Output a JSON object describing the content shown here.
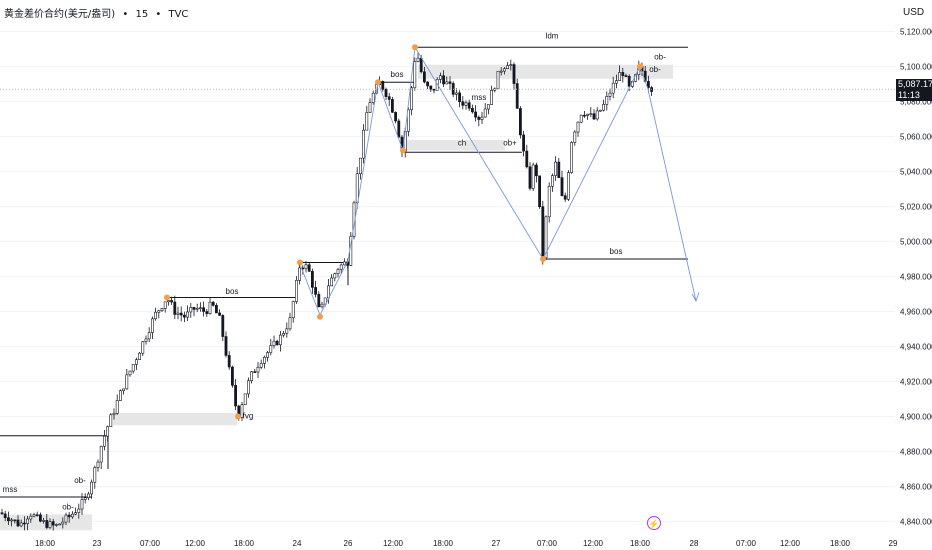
{
  "header": {
    "symbol": "黄金差价合约(美元/盎司)",
    "sep1": "•",
    "interval": "15",
    "sep2": "•",
    "source": "TVC"
  },
  "price_axis": {
    "currency": "USD"
  },
  "last_price": {
    "value": "5,087.171",
    "countdown": "11:13"
  },
  "alert_icon": "lightning-icon",
  "colors": {
    "candle": "#131722",
    "zone": "#e6e6e6",
    "pivot": "#f59c49",
    "projection": "#7b96d9",
    "price_tag_bg": "#131722",
    "alert": "#b03ad9"
  },
  "chart_data": {
    "type": "candlestick",
    "ylim": [
      4830,
      5130
    ],
    "y_ticks": [
      4840,
      4860,
      4880,
      4900,
      4920,
      4940,
      4960,
      4980,
      5000,
      5020,
      5040,
      5060,
      5080,
      5100,
      5120
    ],
    "y_tick_labels": [
      "4,840.000",
      "4,860.000",
      "4,880.000",
      "4,900.000",
      "4,920.000",
      "4,940.000",
      "4,960.000",
      "4,980.000",
      "5,000.000",
      "5,020.000",
      "5,040.000",
      "5,060.000",
      "5,080.000",
      "5,100.000",
      "5,120.000"
    ],
    "x_ticks": [
      "18:00",
      "23",
      "07:00",
      "12:00",
      "18:00",
      "24",
      "26",
      "12:00",
      "18:00",
      "27",
      "07:00",
      "12:00",
      "18:00",
      "28",
      "07:00",
      "12:00",
      "18:00",
      "29"
    ],
    "price_path": [
      [
        0,
        4845
      ],
      [
        10,
        4842
      ],
      [
        20,
        4838
      ],
      [
        30,
        4845
      ],
      [
        40,
        4840
      ],
      [
        55,
        4837
      ],
      [
        70,
        4843
      ],
      [
        85,
        4852
      ],
      [
        95,
        4870
      ],
      [
        102,
        4885
      ],
      [
        108,
        4895
      ],
      [
        115,
        4905
      ],
      [
        125,
        4920
      ],
      [
        135,
        4932
      ],
      [
        145,
        4945
      ],
      [
        155,
        4958
      ],
      [
        167,
        4968
      ],
      [
        175,
        4960
      ],
      [
        185,
        4957
      ],
      [
        195,
        4962
      ],
      [
        205,
        4960
      ],
      [
        212,
        4964
      ],
      [
        220,
        4955
      ],
      [
        228,
        4930
      ],
      [
        235,
        4908
      ],
      [
        238,
        4900
      ],
      [
        243,
        4910
      ],
      [
        250,
        4922
      ],
      [
        260,
        4932
      ],
      [
        270,
        4938
      ],
      [
        280,
        4945
      ],
      [
        290,
        4955
      ],
      [
        300,
        4987
      ],
      [
        308,
        4985
      ],
      [
        315,
        4970
      ],
      [
        320,
        4958
      ],
      [
        328,
        4975
      ],
      [
        338,
        4985
      ],
      [
        348,
        4989
      ],
      [
        355,
        5030
      ],
      [
        362,
        5055
      ],
      [
        368,
        5078
      ],
      [
        374,
        5085
      ],
      [
        380,
        5091
      ],
      [
        388,
        5083
      ],
      [
        396,
        5070
      ],
      [
        402,
        5052
      ],
      [
        410,
        5080
      ],
      [
        416,
        5110
      ],
      [
        424,
        5090
      ],
      [
        432,
        5085
      ],
      [
        440,
        5095
      ],
      [
        450,
        5088
      ],
      [
        460,
        5080
      ],
      [
        470,
        5078
      ],
      [
        480,
        5070
      ],
      [
        490,
        5082
      ],
      [
        500,
        5098
      ],
      [
        510,
        5104
      ],
      [
        518,
        5072
      ],
      [
        525,
        5045
      ],
      [
        530,
        5032
      ],
      [
        535,
        5048
      ],
      [
        540,
        5015
      ],
      [
        543,
        4990
      ],
      [
        548,
        5028
      ],
      [
        556,
        5045
      ],
      [
        564,
        5018
      ],
      [
        572,
        5060
      ],
      [
        582,
        5075
      ],
      [
        594,
        5070
      ],
      [
        604,
        5078
      ],
      [
        612,
        5088
      ],
      [
        622,
        5098
      ],
      [
        630,
        5086
      ],
      [
        640,
        5100
      ],
      [
        648,
        5090
      ],
      [
        654,
        5087
      ]
    ],
    "levels": [
      {
        "label": "ldm",
        "price": 5111
      },
      {
        "label": "bos",
        "price": 5091
      },
      {
        "label": "ch",
        "price": 5051
      },
      {
        "label": "bos",
        "price": 4990
      },
      {
        "label": "bos",
        "price": 4968
      },
      {
        "label": "mss",
        "price": 4854
      },
      {
        "label": "",
        "price": 4889
      },
      {
        "label": "",
        "price": 4988
      }
    ],
    "zones": [
      {
        "label": "ob-",
        "top": 5101,
        "bottom": 5093
      },
      {
        "label": "",
        "top": 5058,
        "bottom": 5052
      },
      {
        "label": "fvg",
        "top": 4902,
        "bottom": 4895
      },
      {
        "label": "ob-",
        "top": 4844,
        "bottom": 4835
      }
    ],
    "annotations": [
      "ldm",
      "ob-",
      "bos",
      "mss",
      "ob+",
      "ch",
      "bos",
      "bos",
      "fvg",
      "mss",
      "ob-"
    ],
    "pivots": [
      4968,
      4900,
      4988,
      4957,
      5091,
      5052,
      5111,
      4990,
      5100
    ]
  }
}
